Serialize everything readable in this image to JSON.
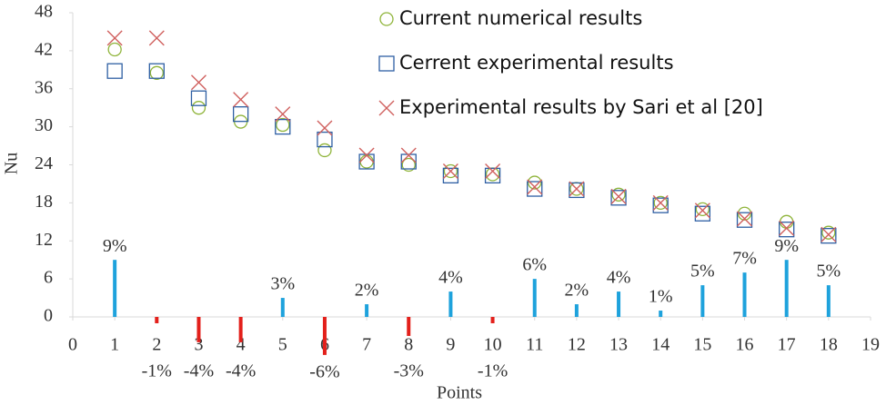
{
  "chart_data": {
    "type": "scatter",
    "x_label": "Points",
    "y_label": "Nu",
    "x": [
      1,
      2,
      3,
      4,
      5,
      6,
      7,
      8,
      9,
      10,
      11,
      12,
      13,
      14,
      15,
      16,
      17,
      18
    ],
    "xlim": [
      0,
      19
    ],
    "xticks": [
      0,
      1,
      2,
      3,
      4,
      5,
      6,
      7,
      8,
      9,
      10,
      11,
      12,
      13,
      14,
      15,
      16,
      17,
      18,
      19
    ],
    "ylim": [
      0,
      48
    ],
    "yticks": [
      0,
      6,
      12,
      18,
      24,
      30,
      36,
      42,
      48
    ],
    "legend": "upper right",
    "series": [
      {
        "name": "Current numerical results",
        "color": "#8fb43a",
        "marker": "circle",
        "values": [
          42.2,
          38.5,
          33,
          30.8,
          30.3,
          26.3,
          24.5,
          24,
          23,
          22.5,
          21.2,
          20.2,
          19.3,
          18,
          17,
          16.3,
          15,
          13.3
        ]
      },
      {
        "name": "Cerrent experimental results",
        "color": "#2e5fa3",
        "marker": "square",
        "values": [
          38.8,
          38.8,
          34.5,
          32,
          30,
          28,
          24.5,
          24.5,
          22.3,
          22.3,
          20.2,
          20,
          18.8,
          17.6,
          16.3,
          15.3,
          13.8,
          12.8
        ]
      },
      {
        "name": "Experimental results by Sari et al [20]",
        "color": "#d0605e",
        "marker": "x",
        "values": [
          44,
          44,
          37,
          34.3,
          32,
          29.8,
          25.5,
          25.5,
          23,
          23,
          20.5,
          20.2,
          19,
          18,
          16.8,
          15.5,
          14,
          13
        ]
      }
    ],
    "bars": {
      "color": "#1ea2dc",
      "negative_color": "#e3201b",
      "values": [
        9,
        -1,
        -4,
        -4,
        3,
        -6,
        2,
        -3,
        4,
        -1,
        6,
        2,
        4,
        1,
        5,
        7,
        9,
        5
      ],
      "value_labels": [
        "9%",
        "-1%",
        "-4%",
        "-4%",
        "3%",
        "-6%",
        "2%",
        "-3%",
        "4%",
        "-1%",
        "6%",
        "2%",
        "4%",
        "1%",
        "5%",
        "7%",
        "9%",
        "5%"
      ]
    }
  }
}
